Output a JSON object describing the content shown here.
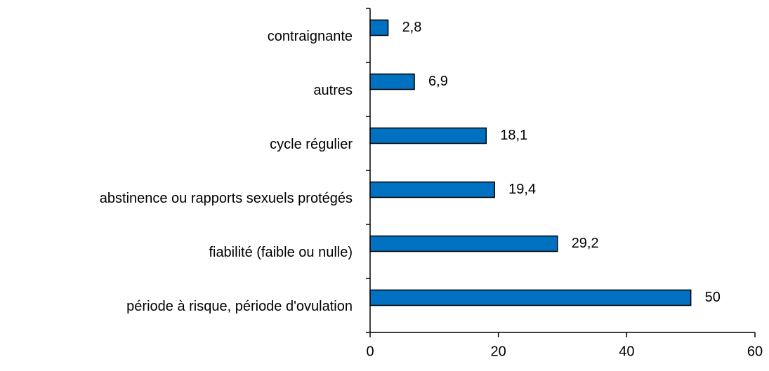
{
  "chart_data": {
    "type": "bar",
    "orientation": "horizontal",
    "categories": [
      "contraignante",
      "autres",
      "cycle régulier",
      "abstinence ou rapports sexuels protégés",
      "fiabilité (faible ou nulle)",
      "période à risque, période d'ovulation"
    ],
    "values": [
      2.8,
      6.9,
      18.1,
      19.4,
      29.2,
      50
    ],
    "value_labels": [
      "2,8",
      "6,9",
      "18,1",
      "19,4",
      "29,2",
      "50"
    ],
    "color": "#0070c0",
    "xlim": [
      0,
      60
    ],
    "xticks": [
      0,
      20,
      40,
      60
    ],
    "grid": false
  }
}
